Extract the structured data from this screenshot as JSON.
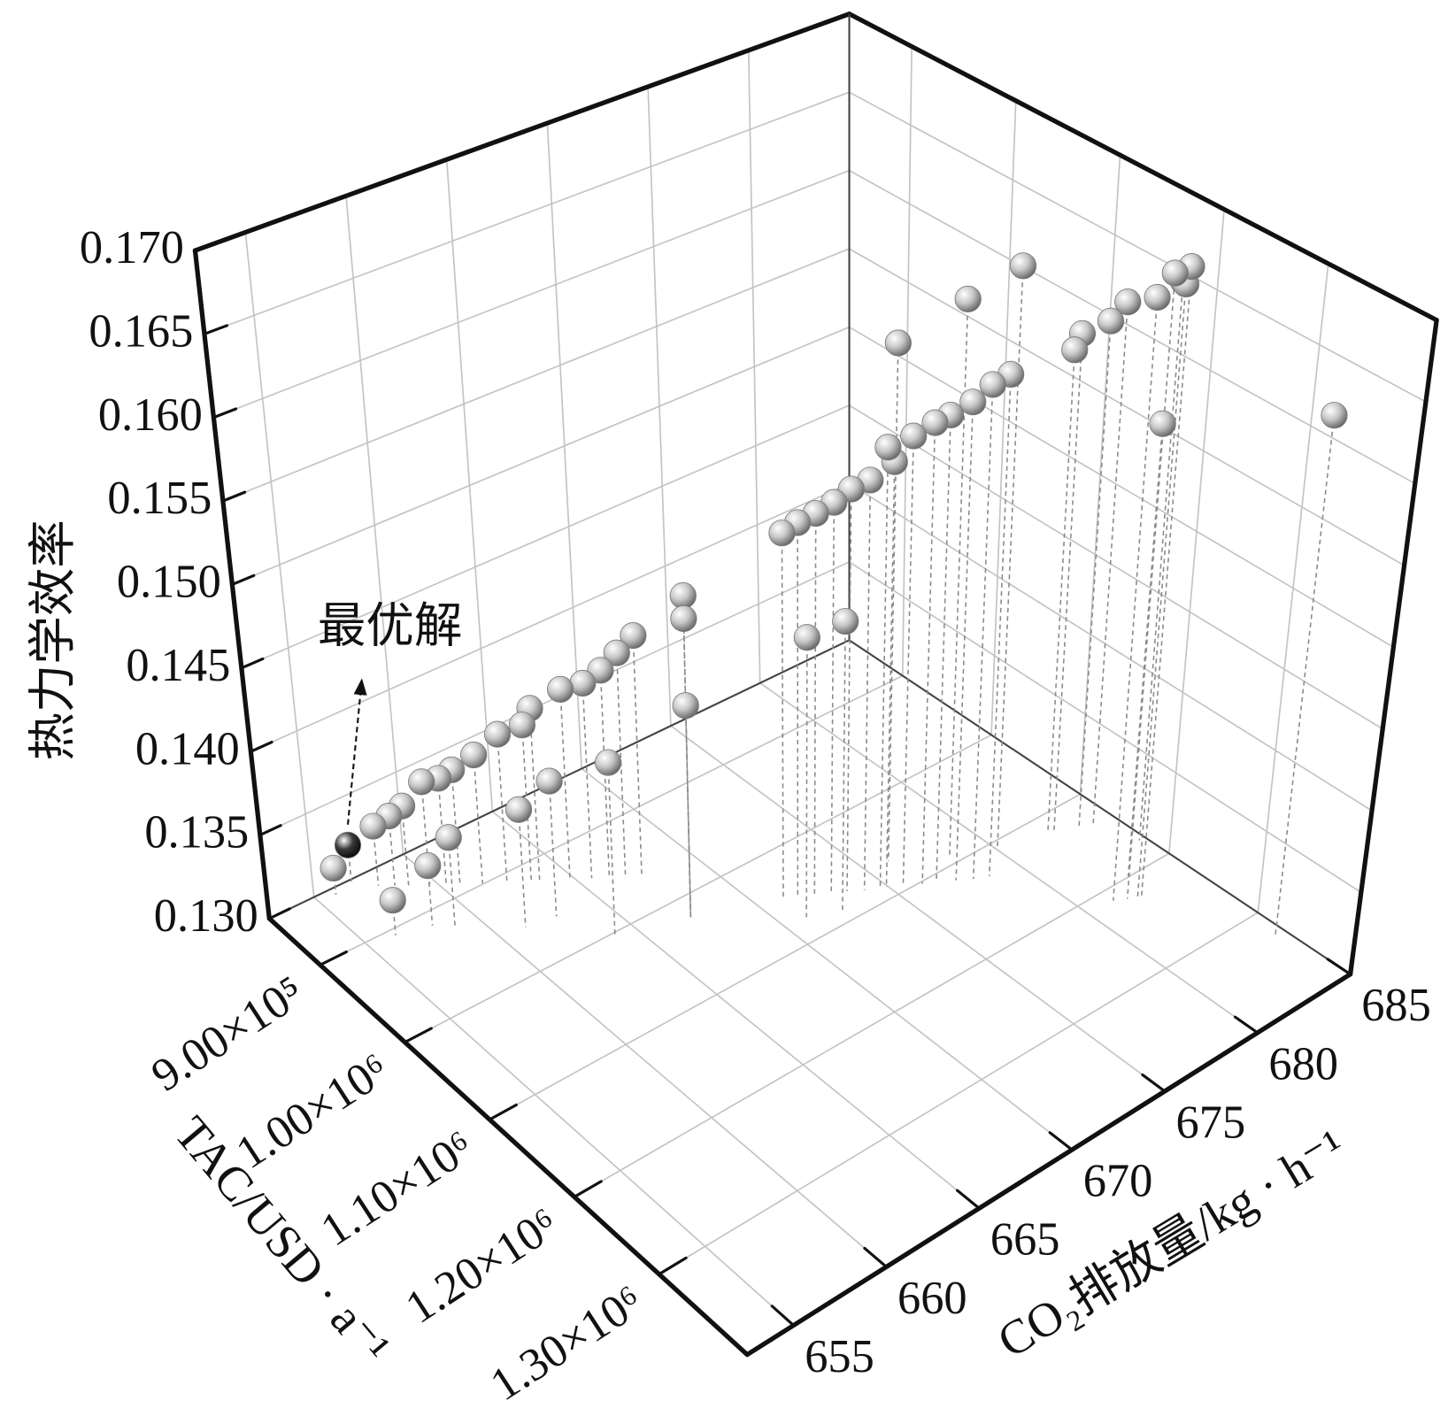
{
  "chart_data": {
    "type": "scatter3d",
    "xlabel": "TAC/USD · a⁻¹",
    "ylabel": "CO₂排放量/kg · h⁻¹",
    "zlabel": "热力学效率",
    "xlim": [
      840000,
      1404000
    ],
    "ylim": [
      652.5,
      685
    ],
    "zlim": [
      0.13,
      0.17
    ],
    "xticks": [
      {
        "value": 900000,
        "label": "9.00×10⁵"
      },
      {
        "value": 1000000,
        "label": "1.00×10⁶"
      },
      {
        "value": 1100000,
        "label": "1.10×10⁶"
      },
      {
        "value": 1200000,
        "label": "1.20×10⁶"
      },
      {
        "value": 1300000,
        "label": "1.30×10⁶"
      }
    ],
    "yticks": [
      655,
      660,
      665,
      670,
      675,
      680,
      685
    ],
    "zticks": [
      {
        "value": 0.13,
        "label": "0.130"
      },
      0.135,
      {
        "value": 0.14,
        "label": "0.140"
      },
      0.145,
      {
        "value": 0.15,
        "label": "0.150"
      },
      0.155,
      {
        "value": 0.16,
        "label": "0.160"
      },
      0.165,
      {
        "value": 0.17,
        "label": "0.170"
      }
    ],
    "grid": true,
    "color": "#c8c8c8",
    "x": [
      847000,
      857000,
      863700,
      869300,
      877200,
      884000,
      889600,
      899200,
      908800,
      918400,
      921800,
      934100,
      942600,
      950500,
      956700,
      963000,
      1021600,
      1021600,
      1021600,
      906600,
      913900,
      923500,
      955600,
      960100,
      1003000,
      1047000,
      1053200,
      1060000,
      1066700,
      1072300,
      1079700,
      1085300,
      1088200,
      1094900,
      1102300,
      1107900,
      1115800,
      1123100,
      1128800,
      1075700,
      1089900,
      1065600,
      1089900,
      1109000,
      1116900,
      1119700,
      1129300,
      1135000,
      1213400,
      1219000,
      1222400,
      1224600,
      1172800,
      1199300,
      1330000
    ],
    "y": [
      655.9,
      657.8,
      658.4,
      658.9,
      659.7,
      660.3,
      660.8,
      661.6,
      662.5,
      663.4,
      663.7,
      664.8,
      665.6,
      666.2,
      666.8,
      667.4,
      667.3,
      667.3,
      667.3,
      656.4,
      658.1,
      658.9,
      661.3,
      662.8,
      664.0,
      671.2,
      671.7,
      672.3,
      672.9,
      673.5,
      674.1,
      674.7,
      674.9,
      675.5,
      676.2,
      676.7,
      677.4,
      678.0,
      678.6,
      671.1,
      672.4,
      676.1,
      678.3,
      680.0,
      682.4,
      682.6,
      683.5,
      684.0,
      681.3,
      681.8,
      682.2,
      682.3,
      684.7,
      682.8,
      684.5
    ],
    "z": [
      0.1316,
      0.1336,
      0.1342,
      0.1348,
      0.1362,
      0.1364,
      0.1369,
      0.1378,
      0.139,
      0.1395,
      0.1405,
      0.1416,
      0.1419,
      0.1427,
      0.1437,
      0.1447,
      0.1496,
      0.1482,
      0.1429,
      0.1321,
      0.1336,
      0.1353,
      0.1371,
      0.1382,
      0.1405,
      0.1523,
      0.1529,
      0.1534,
      0.154,
      0.1547,
      0.1552,
      0.1571,
      0.1562,
      0.1577,
      0.1584,
      0.1588,
      0.1595,
      0.1605,
      0.161,
      0.1471,
      0.1479,
      0.162,
      0.1644,
      0.1662,
      0.1599,
      0.1609,
      0.1615,
      0.1626,
      0.1672,
      0.1686,
      0.1678,
      0.1689,
      0.1648,
      0.158,
      0.162
    ],
    "annotation": {
      "text": "最优解",
      "x": 842000,
      "y": 657.0,
      "z": 0.1322,
      "color": "#3a3a3a"
    }
  }
}
